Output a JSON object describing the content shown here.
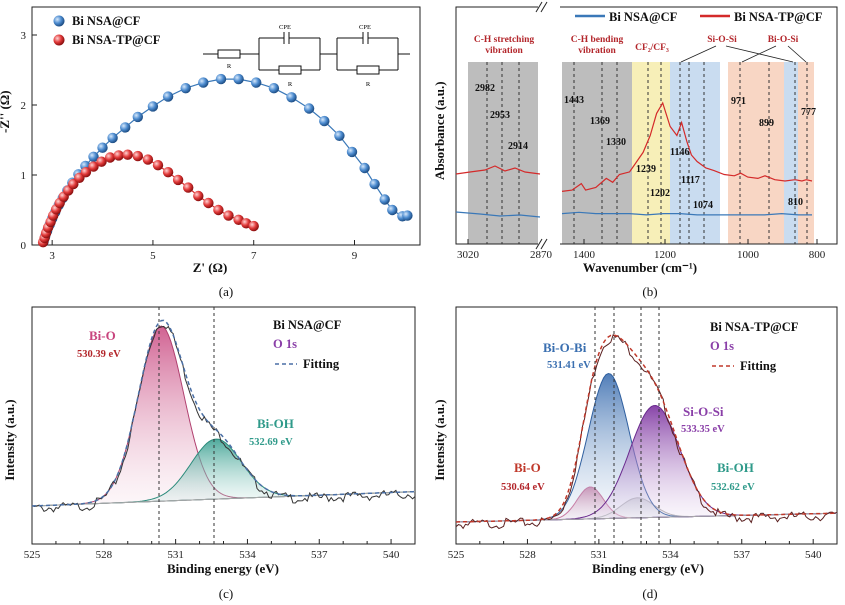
{
  "colors": {
    "blue": "#3a78b8",
    "red": "#d42a2a",
    "pink": "#c8457e",
    "teal": "#2f9a8a",
    "purple": "#8a3fa8",
    "darkred": "#8b2a2a",
    "gray": "#bdbdbd",
    "yellow": "#f7efb8",
    "lightblue": "#c9dcf0",
    "peach": "#f8d6c4"
  },
  "chart_data": [
    {
      "id": "a",
      "type": "scatter",
      "panel_label": "(a)",
      "xlabel": "Z' (Ω)",
      "ylabel": "-Z'' (Ω)",
      "xlim": [
        2.6,
        10.3
      ],
      "ylim": [
        0,
        3.4
      ],
      "xticks": [
        "3",
        "5",
        "7",
        "9"
      ],
      "yticks": [
        "0",
        "1",
        "2",
        "3"
      ],
      "legend": [
        "Bi NSA@CF",
        "Bi NSA-TP@CF"
      ],
      "circuit_labels": [
        "R",
        "CPE",
        "R",
        "CPE",
        "R"
      ],
      "series": [
        {
          "name": "Bi NSA@CF",
          "x": [
            2.83,
            2.86,
            2.9,
            2.95,
            3.0,
            3.06,
            3.13,
            3.21,
            3.3,
            3.4,
            3.52,
            3.66,
            3.82,
            4.0,
            4.2,
            4.45,
            4.7,
            5.0,
            5.3,
            5.65,
            6.0,
            6.35,
            6.7,
            7.05,
            7.4,
            7.75,
            8.1,
            8.4,
            8.7,
            8.95,
            9.2,
            9.4,
            9.6,
            9.75,
            9.95,
            10.05
          ],
          "y": [
            0.05,
            0.12,
            0.2,
            0.29,
            0.38,
            0.47,
            0.57,
            0.67,
            0.78,
            0.89,
            1.01,
            1.13,
            1.26,
            1.39,
            1.53,
            1.68,
            1.83,
            1.98,
            2.12,
            2.24,
            2.32,
            2.37,
            2.37,
            2.32,
            2.24,
            2.11,
            1.95,
            1.77,
            1.56,
            1.33,
            1.1,
            0.87,
            0.65,
            0.5,
            0.41,
            0.42
          ]
        },
        {
          "name": "Bi NSA-TP@CF",
          "x": [
            2.82,
            2.85,
            2.88,
            2.92,
            2.97,
            3.02,
            3.08,
            3.15,
            3.23,
            3.32,
            3.42,
            3.54,
            3.67,
            3.82,
            3.98,
            4.15,
            4.32,
            4.5,
            4.7,
            4.9,
            5.1,
            5.3,
            5.5,
            5.7,
            5.9,
            6.1,
            6.3,
            6.5,
            6.7,
            6.85,
            7.0
          ],
          "y": [
            0.04,
            0.1,
            0.17,
            0.25,
            0.33,
            0.42,
            0.51,
            0.6,
            0.69,
            0.78,
            0.87,
            0.96,
            1.04,
            1.12,
            1.19,
            1.25,
            1.28,
            1.29,
            1.27,
            1.22,
            1.14,
            1.04,
            0.93,
            0.82,
            0.7,
            0.6,
            0.5,
            0.42,
            0.36,
            0.31,
            0.27
          ]
        }
      ]
    },
    {
      "id": "b",
      "type": "line",
      "panel_label": "(b)",
      "xlabel": "Wavenumber (cm⁻¹)",
      "ylabel": "Absorbance (a.u.)",
      "xticks": [
        "3020",
        "2870",
        "1400",
        "1200",
        "1000",
        "800"
      ],
      "legend": [
        "Bi NSA@CF",
        "Bi NSA-TP@CF"
      ],
      "group_labels": [
        "C-H stretching",
        "vibration",
        "C-H bending",
        "vibration",
        "CF₂/CF₃",
        "Si-O-Si",
        "Bi-O-Si"
      ],
      "peak_labels": [
        "2982",
        "2953",
        "2914",
        "1443",
        "1369",
        "1330",
        "1239",
        "1202",
        "1146",
        "1117",
        "1074",
        "971",
        "899",
        "810",
        "777"
      ],
      "series": [
        {
          "name": "Bi NSA-TP@CF",
          "x": [
            1500,
            1470,
            1443,
            1430,
            1400,
            1369,
            1350,
            1330,
            1300,
            1260,
            1239,
            1220,
            1202,
            1180,
            1160,
            1146,
            1130,
            1117,
            1100,
            1074,
            1050,
            1020,
            990,
            971,
            950,
            920,
            899,
            870,
            840,
            810,
            790,
            777,
            760
          ],
          "y": [
            0.32,
            0.33,
            0.38,
            0.33,
            0.35,
            0.42,
            0.39,
            0.45,
            0.47,
            0.62,
            0.75,
            0.92,
            1.0,
            0.82,
            0.75,
            0.85,
            0.7,
            0.6,
            0.55,
            0.5,
            0.48,
            0.45,
            0.44,
            0.46,
            0.43,
            0.42,
            0.44,
            0.41,
            0.4,
            0.41,
            0.4,
            0.41,
            0.4
          ]
        },
        {
          "name": "Bi NSA@CF",
          "x": [
            1500,
            1450,
            1400,
            1350,
            1300,
            1250,
            1200,
            1150,
            1100,
            1050,
            1000,
            950,
            900,
            850,
            800,
            760
          ],
          "y": [
            0.08,
            0.09,
            0.08,
            0.08,
            0.08,
            0.07,
            0.08,
            0.08,
            0.07,
            0.07,
            0.07,
            0.07,
            0.07,
            0.08,
            0.07,
            0.07
          ]
        }
      ]
    },
    {
      "id": "c",
      "type": "line",
      "panel_label": "(c)",
      "xlabel": "Binding energy (eV)",
      "ylabel": "Intensity (a.u.)",
      "xlim": [
        525,
        541
      ],
      "xticks": [
        "525",
        "528",
        "531",
        "534",
        "537",
        "540"
      ],
      "sample": "Bi NSA@CF",
      "core_level": "O 1s",
      "fit_label": "Fitting",
      "peaks": [
        {
          "name": "Bi-O",
          "energy": "530.39 eV"
        },
        {
          "name": "Bi-OH",
          "energy": "532.69 eV"
        }
      ]
    },
    {
      "id": "d",
      "type": "line",
      "panel_label": "(d)",
      "xlabel": "Binding energy (eV)",
      "ylabel": "Intensity (a.u.)",
      "xlim": [
        525,
        541
      ],
      "xticks": [
        "525",
        "528",
        "531",
        "534",
        "537",
        "540"
      ],
      "sample": "Bi NSA-TP@CF",
      "core_level": "O 1s",
      "fit_label": "Fitting",
      "peaks": [
        {
          "name": "Bi-O-Bi",
          "energy": "531.41 eV"
        },
        {
          "name": "Si-O-Si",
          "energy": "533.35 eV"
        },
        {
          "name": "Bi-O",
          "energy": "530.64 eV"
        },
        {
          "name": "Bi-OH",
          "energy": "532.62 eV"
        }
      ]
    }
  ]
}
